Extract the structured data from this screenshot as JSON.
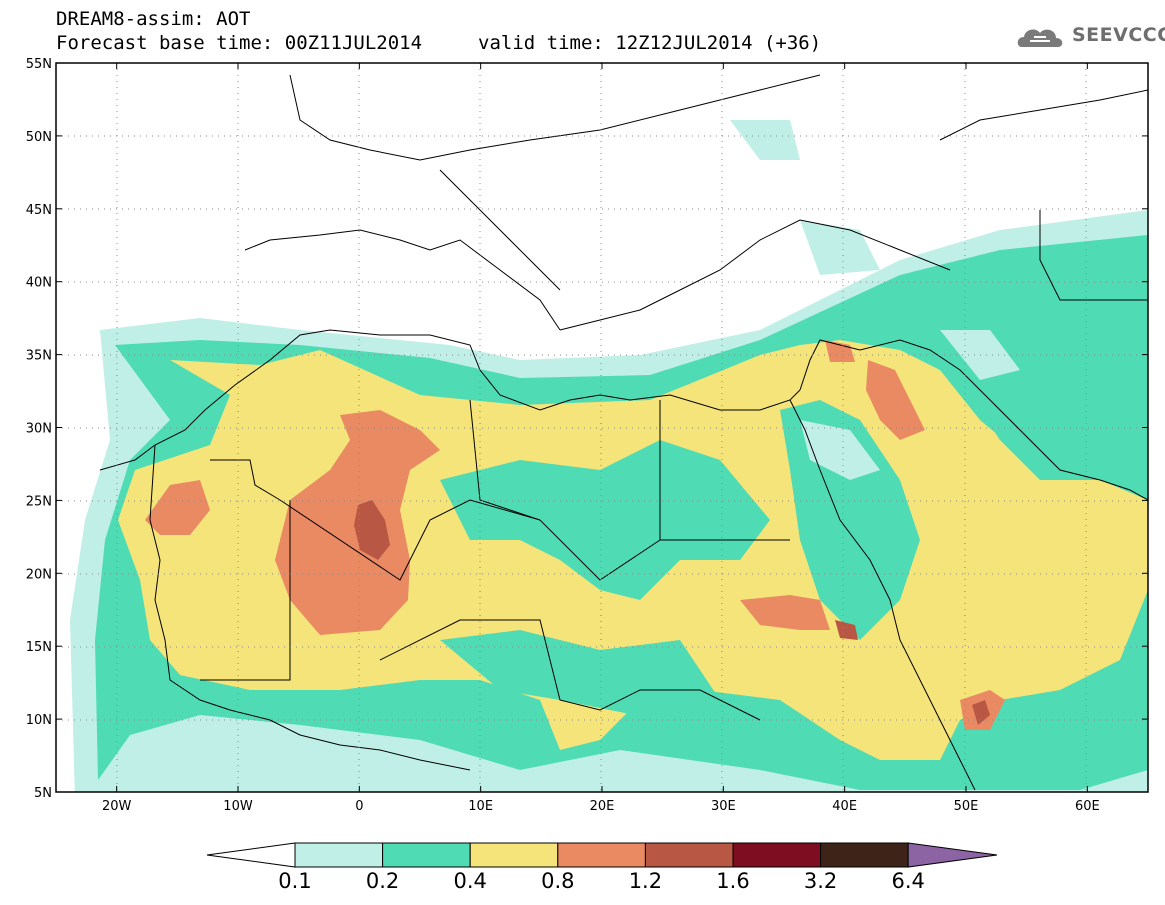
{
  "header": {
    "title_line1": "DREAM8-assim: AOT",
    "title_line2": "Forecast base time: 00Z11JUL2014",
    "valid_line": "valid time: 12Z12JUL2014 (+36)"
  },
  "logo": {
    "text": "SEEVCCC",
    "icon": "cloud-logo-icon"
  },
  "map": {
    "lon_range": [
      -25,
      65
    ],
    "lat_range": [
      5,
      55
    ],
    "grid": "dotted",
    "lon_labels": [
      "20W",
      "10W",
      "0",
      "10E",
      "20E",
      "30E",
      "40E",
      "50E",
      "60E"
    ],
    "lon_values": [
      -20,
      -10,
      0,
      10,
      20,
      30,
      40,
      50,
      60
    ],
    "lat_labels": [
      "55N",
      "50N",
      "45N",
      "40N",
      "35N",
      "30N",
      "25N",
      "20N",
      "15N",
      "10N",
      "5N"
    ],
    "lat_values": [
      55,
      50,
      45,
      40,
      35,
      30,
      25,
      20,
      15,
      10,
      5
    ]
  },
  "colorbar": {
    "labels": [
      "0.1",
      "0.2",
      "0.4",
      "0.8",
      "1.2",
      "1.6",
      "3.2",
      "6.4"
    ],
    "colors": [
      "#ffffff",
      "#c0efe8",
      "#4fdbb4",
      "#f5e47a",
      "#ea8a63",
      "#b85743",
      "#7e0d21",
      "#3e2418",
      "#8c64a4"
    ]
  }
}
